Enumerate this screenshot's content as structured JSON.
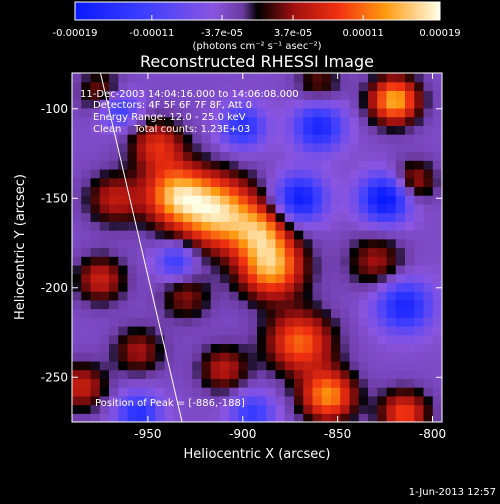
{
  "chart_data": {
    "type": "heatmap",
    "title": "Reconstructed RHESSI Image",
    "annotations": {
      "time_range": "11-Dec-2003 14:04:16.000 to 14:06:08.000",
      "detectors": "Detectors: 4F 5F 6F 7F 8F, Att 0",
      "energy": "Energy Range: 12.0 - 25.0 keV",
      "method": "Clean    Total counts: 1.23E+03",
      "peak": "Position of Peak = [-886,-188]"
    },
    "xlabel": "Heliocentric X (arcsec)",
    "ylabel": "Heliocentric Y (arcsec)",
    "xlim": [
      -990,
      -795
    ],
    "ylim": [
      -275,
      -80
    ],
    "xticks": [
      -950,
      -900,
      -850,
      -800
    ],
    "xtick_labels": [
      "-950",
      "-900",
      "-850",
      "-800"
    ],
    "yticks": [
      -250,
      -200,
      -150,
      -100
    ],
    "ytick_labels": [
      "-250",
      "-200",
      "-150",
      "-100"
    ],
    "colorbar": {
      "units": "(photons cm⁻² s⁻¹ asec⁻²)",
      "ticks": [
        -0.00019,
        -0.00011,
        -3.7e-05,
        3.7e-05,
        0.00011,
        0.00019
      ],
      "tick_labels": [
        "-0.00019",
        "-0.00011",
        "-3.7e-05",
        "3.7e-05",
        "0.00011",
        "0.00019"
      ],
      "range": [
        -0.00019,
        0.00019
      ]
    },
    "peak": [
      -886,
      -188
    ],
    "limb_line": [
      [
        -975,
        -80
      ],
      [
        -932,
        -275
      ]
    ],
    "blobs": [
      {
        "x": -912,
        "y": -158,
        "s": 14,
        "a": 1.0
      },
      {
        "x": -935,
        "y": -148,
        "s": 12,
        "a": 0.9
      },
      {
        "x": -885,
        "y": -188,
        "s": 12,
        "a": 0.95
      },
      {
        "x": -890,
        "y": -168,
        "s": 10,
        "a": 0.6
      },
      {
        "x": -945,
        "y": -120,
        "s": 10,
        "a": 0.55
      },
      {
        "x": -968,
        "y": -150,
        "s": 10,
        "a": 0.45
      },
      {
        "x": -975,
        "y": -195,
        "s": 9,
        "a": 0.5
      },
      {
        "x": -930,
        "y": -205,
        "s": 9,
        "a": 0.35
      },
      {
        "x": -870,
        "y": -230,
        "s": 12,
        "a": 0.75
      },
      {
        "x": -855,
        "y": -260,
        "s": 10,
        "a": 0.85
      },
      {
        "x": -815,
        "y": -270,
        "s": 9,
        "a": 0.65
      },
      {
        "x": -820,
        "y": -95,
        "s": 9,
        "a": 0.95
      },
      {
        "x": -830,
        "y": -185,
        "s": 10,
        "a": 0.4
      },
      {
        "x": -810,
        "y": -140,
        "s": 8,
        "a": 0.45
      },
      {
        "x": -955,
        "y": -235,
        "s": 9,
        "a": 0.4
      },
      {
        "x": -985,
        "y": -255,
        "s": 9,
        "a": 0.5
      },
      {
        "x": -910,
        "y": -245,
        "s": 9,
        "a": 0.45
      },
      {
        "x": -975,
        "y": -90,
        "s": 8,
        "a": 0.35
      },
      {
        "x": -860,
        "y": -85,
        "s": 8,
        "a": 0.3
      },
      {
        "x": -935,
        "y": -185,
        "s": 7,
        "a": -0.5
      },
      {
        "x": -870,
        "y": -150,
        "s": 9,
        "a": -0.8
      },
      {
        "x": -860,
        "y": -110,
        "s": 9,
        "a": -0.7
      },
      {
        "x": -825,
        "y": -150,
        "s": 9,
        "a": -0.9
      },
      {
        "x": -815,
        "y": -210,
        "s": 10,
        "a": -0.7
      },
      {
        "x": -900,
        "y": -110,
        "s": 8,
        "a": -0.6
      },
      {
        "x": -955,
        "y": -270,
        "s": 8,
        "a": -0.6
      },
      {
        "x": -895,
        "y": -270,
        "s": 8,
        "a": -0.5
      },
      {
        "x": -965,
        "y": -100,
        "s": 7,
        "a": -0.5
      }
    ]
  },
  "footer": {
    "date": "1-Jun-2013 12:57"
  }
}
